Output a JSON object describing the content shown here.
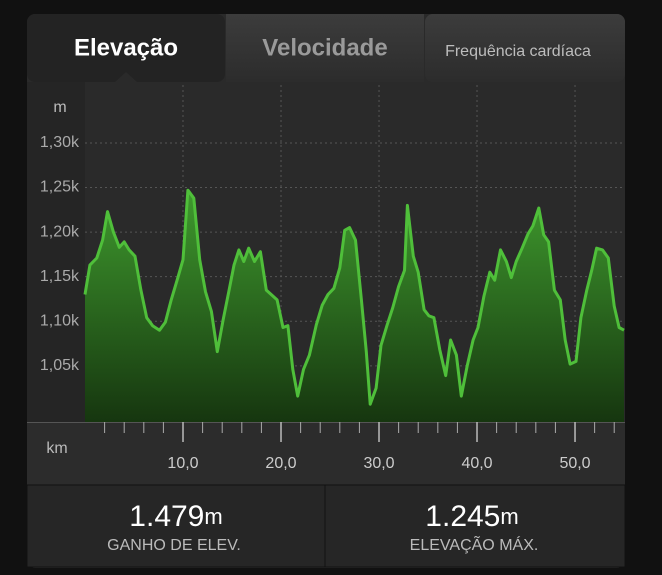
{
  "tabs": [
    "Elevação",
    "Velocidade",
    "Frequência cardíaca"
  ],
  "chart_data": {
    "type": "area",
    "ylabel": "m",
    "xlabel": "km",
    "color": "#4fbf3a",
    "grid": true,
    "x": [
      0,
      0.5,
      1.2,
      1.8,
      2.3,
      2.9,
      3.5,
      4.0,
      4.5,
      5.1,
      5.7,
      6.3,
      6.9,
      7.6,
      8.2,
      8.8,
      9.4,
      10.0,
      10.5,
      11.1,
      11.7,
      12.3,
      12.9,
      13.5,
      14.1,
      14.7,
      15.2,
      15.7,
      16.2,
      16.7,
      17.3,
      17.9,
      18.5,
      19.0,
      19.6,
      20.2,
      20.7,
      21.2,
      21.7,
      22.3,
      22.9,
      23.6,
      24.2,
      24.8,
      25.4,
      26.0,
      26.5,
      27.0,
      27.6,
      28.2,
      28.7,
      29.1,
      29.7,
      30.2,
      30.8,
      31.4,
      32.0,
      32.6,
      32.9,
      33.5,
      34.0,
      34.6,
      35.1,
      35.6,
      36.2,
      36.8,
      37.3,
      37.9,
      38.4,
      39.0,
      39.6,
      40.1,
      40.7,
      41.3,
      41.8,
      42.4,
      43.0,
      43.5,
      44.0,
      44.6,
      45.2,
      45.7,
      46.3,
      46.8,
      47.3,
      47.9,
      48.5,
      49.0,
      49.5,
      50.1,
      50.6,
      51.2,
      51.7,
      52.2,
      52.8,
      53.4,
      54.0,
      54.5,
      55.0
    ],
    "values": [
      1130,
      1163,
      1171,
      1191,
      1223,
      1200,
      1183,
      1189,
      1180,
      1173,
      1135,
      1104,
      1095,
      1090,
      1099,
      1124,
      1146,
      1169,
      1247,
      1238,
      1169,
      1133,
      1111,
      1066,
      1102,
      1135,
      1163,
      1180,
      1167,
      1182,
      1167,
      1178,
      1135,
      1130,
      1124,
      1093,
      1095,
      1046,
      1016,
      1046,
      1062,
      1096,
      1118,
      1130,
      1137,
      1160,
      1202,
      1205,
      1191,
      1124,
      1066,
      1007,
      1025,
      1073,
      1095,
      1115,
      1139,
      1157,
      1230,
      1173,
      1155,
      1113,
      1106,
      1104,
      1068,
      1039,
      1079,
      1062,
      1016,
      1050,
      1079,
      1093,
      1128,
      1155,
      1146,
      1180,
      1167,
      1149,
      1167,
      1182,
      1198,
      1207,
      1227,
      1197,
      1189,
      1135,
      1124,
      1079,
      1052,
      1055,
      1104,
      1135,
      1157,
      1182,
      1180,
      1171,
      1117,
      1093,
      1090
    ],
    "xlim": [
      0,
      55.1
    ],
    "ylim": [
      987,
      1365
    ],
    "yticks": [
      {
        "value": 1050,
        "label": "1,05k"
      },
      {
        "value": 1100,
        "label": "1,10k"
      },
      {
        "value": 1150,
        "label": "1,15k"
      },
      {
        "value": 1200,
        "label": "1,20k"
      },
      {
        "value": 1250,
        "label": "1,25k"
      },
      {
        "value": 1300,
        "label": "1,30k"
      }
    ],
    "xticks": [
      {
        "value": 10,
        "label": "10,0"
      },
      {
        "value": 20,
        "label": "20,0"
      },
      {
        "value": 30,
        "label": "30,0"
      },
      {
        "value": 40,
        "label": "40,0"
      },
      {
        "value": 50,
        "label": "50,0"
      }
    ],
    "xminorticks": [
      2,
      4,
      6,
      8,
      12,
      14,
      16,
      18,
      22,
      24,
      26,
      28,
      32,
      34,
      36,
      38,
      42,
      44,
      46,
      48,
      52,
      54
    ]
  },
  "stats": [
    {
      "value": "1.479",
      "unit": "m",
      "label": "GANHO DE ELEV."
    },
    {
      "value": "1.245",
      "unit": "m",
      "label": "ELEVAÇÃO MÁX."
    }
  ]
}
